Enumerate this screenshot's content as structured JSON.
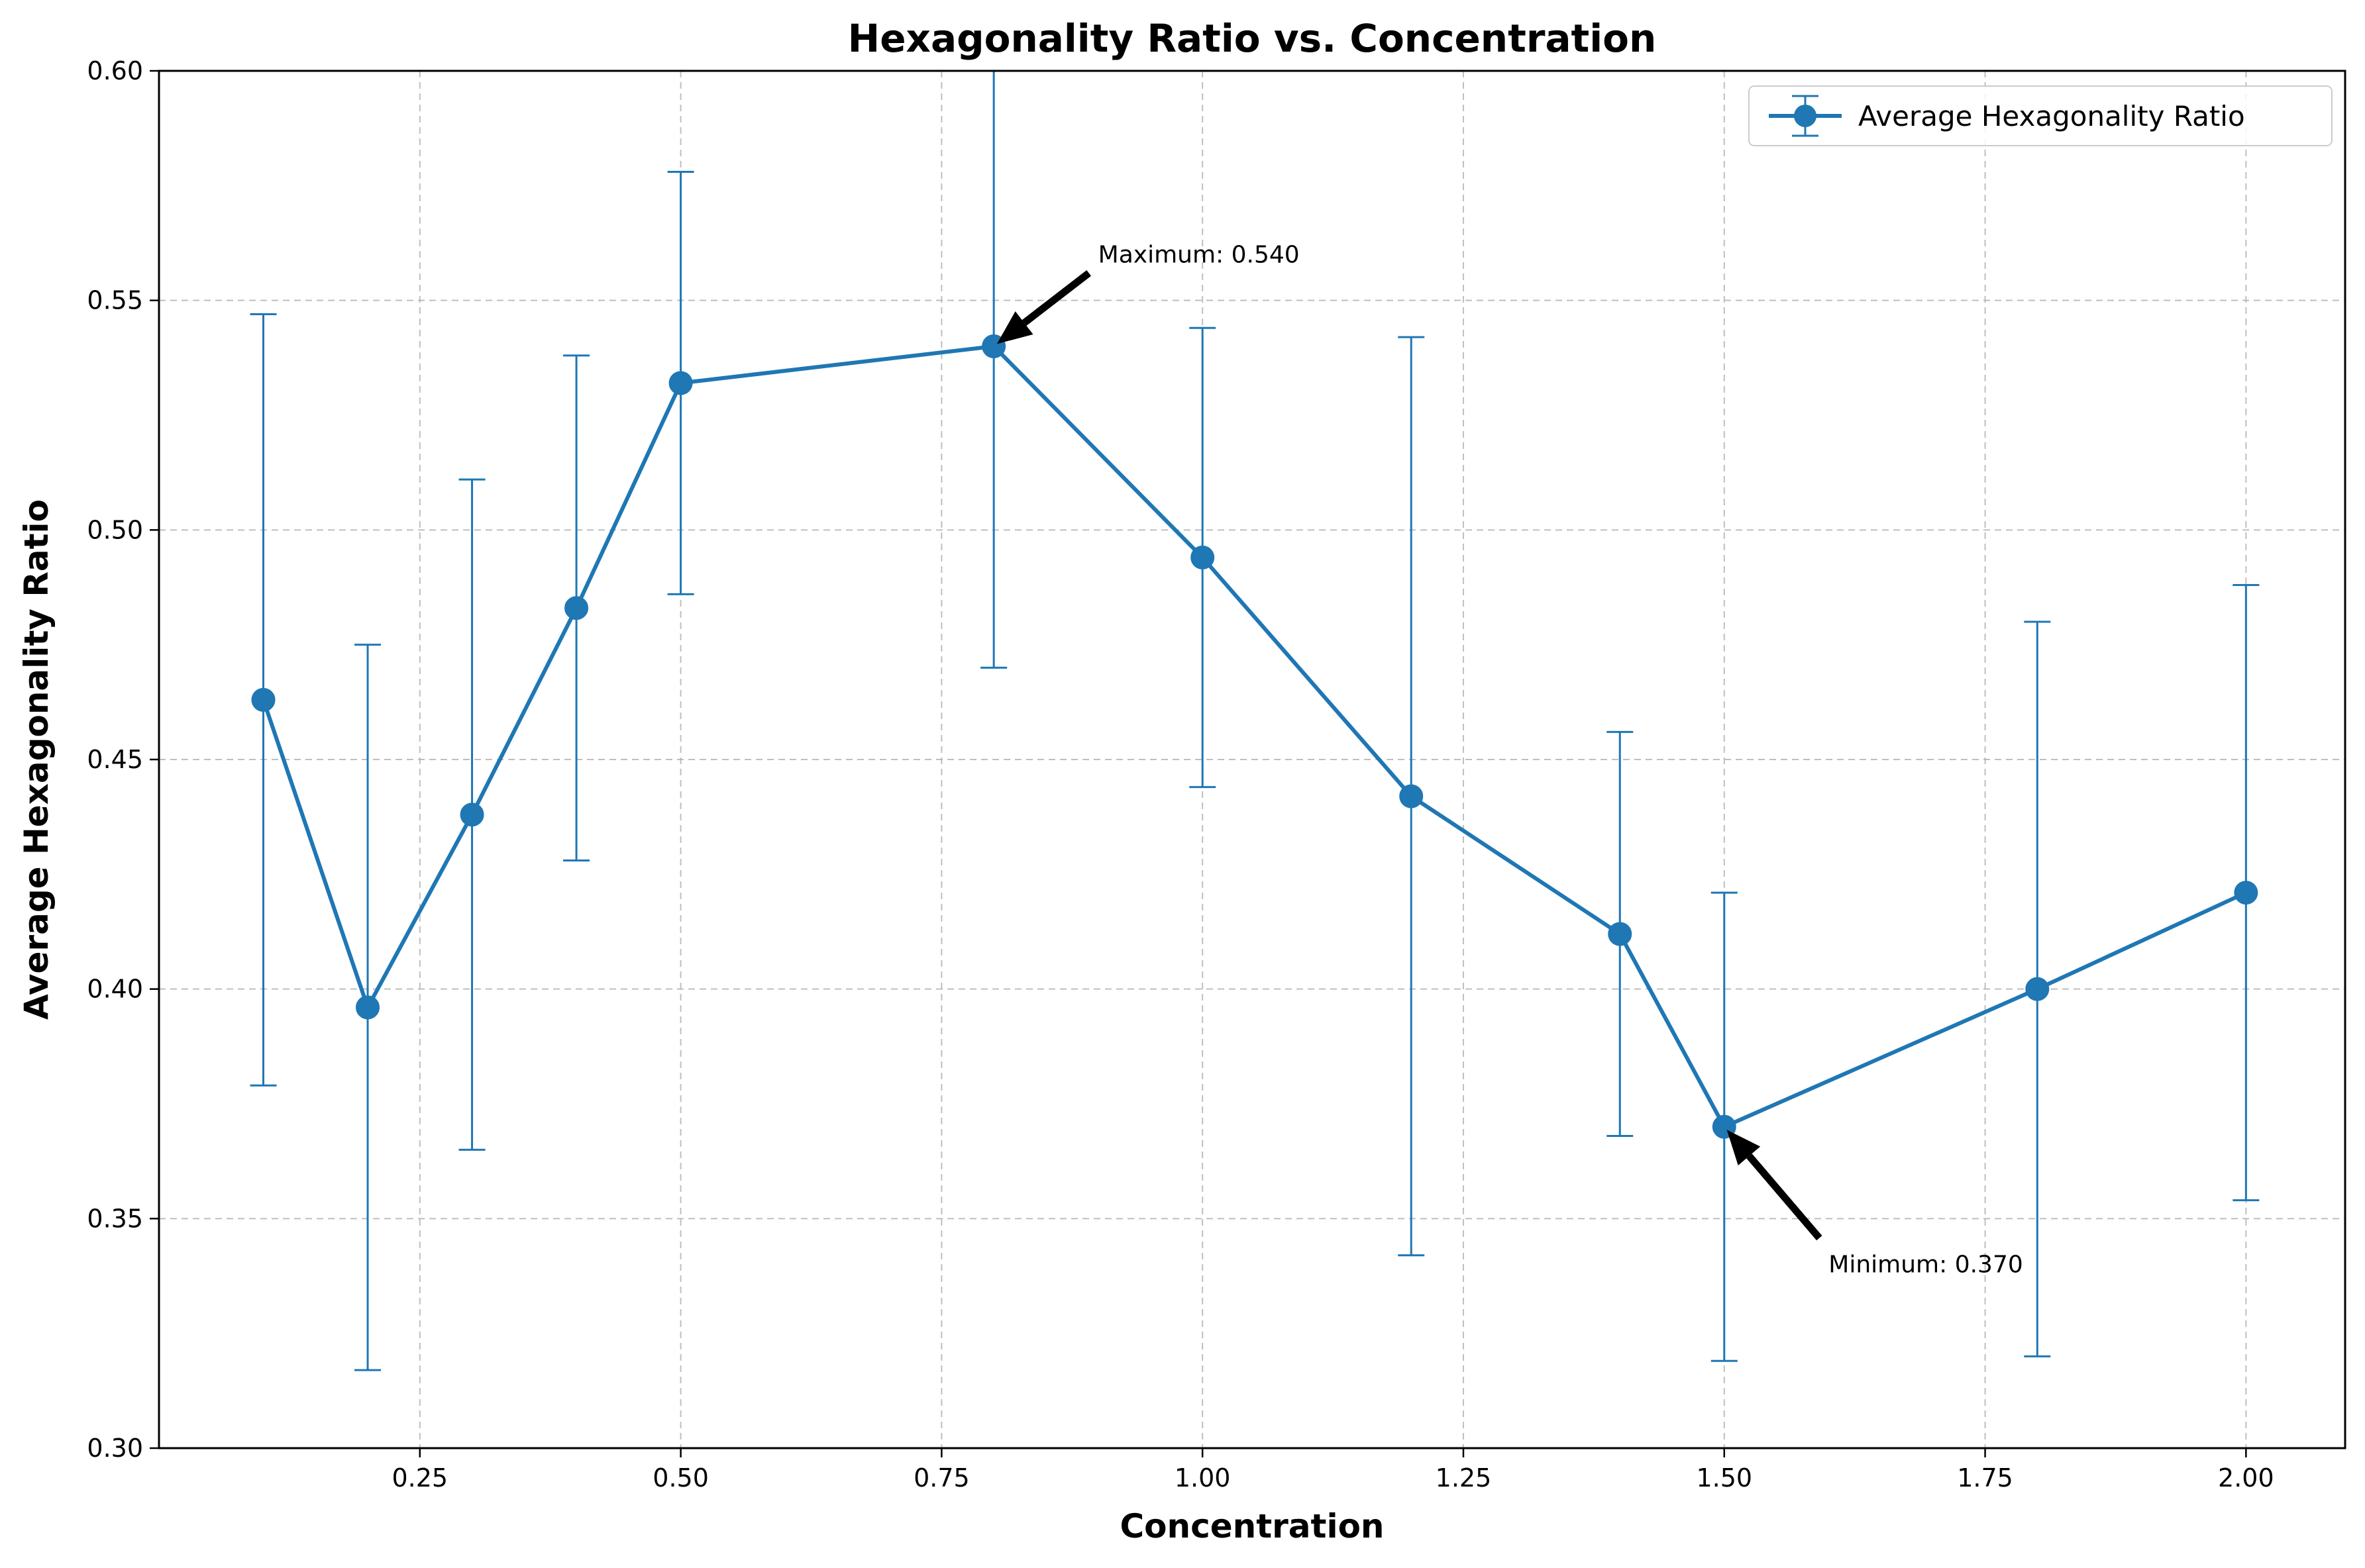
{
  "chart_data": {
    "type": "line",
    "title": "Hexagonality Ratio vs. Concentration",
    "xlabel": "Concentration",
    "ylabel": "Average Hexagonality Ratio",
    "xlim": [
      0.0,
      2.095
    ],
    "ylim": [
      0.3,
      0.6
    ],
    "xticks": [
      0.25,
      0.5,
      0.75,
      1.0,
      1.25,
      1.5,
      1.75,
      2.0
    ],
    "xtick_labels": [
      "0.25",
      "0.50",
      "0.75",
      "1.00",
      "1.25",
      "1.50",
      "1.75",
      "2.00"
    ],
    "yticks": [
      0.3,
      0.35,
      0.4,
      0.45,
      0.5,
      0.55,
      0.6
    ],
    "ytick_labels": [
      "0.30",
      "0.35",
      "0.40",
      "0.45",
      "0.50",
      "0.55",
      "0.60"
    ],
    "grid": true,
    "legend_position": "top-right",
    "color": "#1f77b4",
    "series": [
      {
        "name": "Average Hexagonality Ratio",
        "x": [
          0.1,
          0.2,
          0.3,
          0.4,
          0.5,
          0.8,
          1.0,
          1.2,
          1.4,
          1.5,
          1.8,
          2.0
        ],
        "y": [
          0.463,
          0.396,
          0.438,
          0.483,
          0.532,
          0.54,
          0.494,
          0.442,
          0.412,
          0.37,
          0.4,
          0.421
        ],
        "yerr": [
          0.084,
          0.079,
          0.073,
          0.055,
          0.046,
          0.07,
          0.05,
          0.1,
          0.044,
          0.051,
          0.08,
          0.067
        ]
      }
    ],
    "annotations": [
      {
        "text": "Maximum: 0.540",
        "x": 0.8,
        "y": 0.54,
        "text_x": 0.9,
        "text_y": 0.56
      },
      {
        "text": "Minimum: 0.370",
        "x": 1.5,
        "y": 0.37,
        "text_x": 1.6,
        "text_y": 0.34
      }
    ]
  }
}
